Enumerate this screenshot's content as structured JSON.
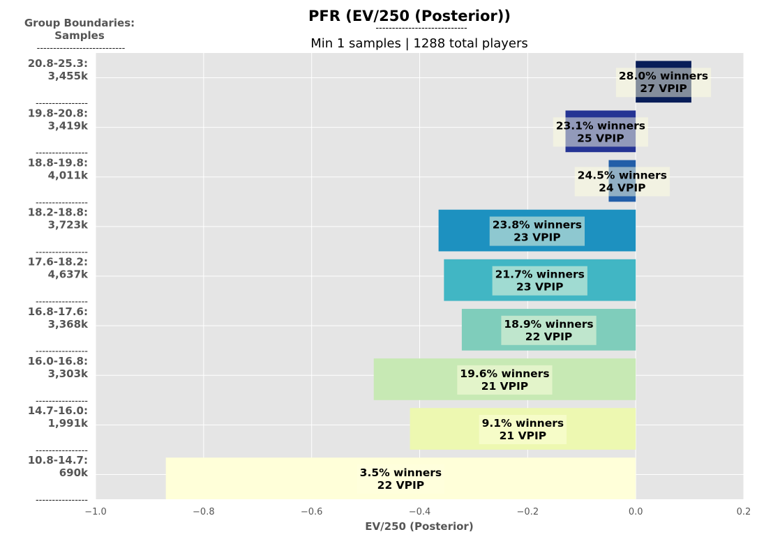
{
  "chart_data": {
    "type": "bar",
    "orientation": "horizontal",
    "title": "PFR (EV/250 (Posterior))",
    "subtitle": "Min 1 samples | 1288 total players",
    "title_rule": "----------------------------",
    "group_header": [
      "Group Boundaries:",
      "Samples"
    ],
    "group_header_rule": "---------------------------",
    "group_separator": "----------------",
    "xlabel": "EV/250 (Posterior)",
    "xlim": [
      -1.0,
      0.2
    ],
    "xticks": [
      "−1.0",
      "−0.8",
      "−0.6",
      "−0.4",
      "−0.2",
      "0.0",
      "0.2"
    ],
    "xtick_values": [
      -1.0,
      -0.8,
      -0.6,
      -0.4,
      -0.2,
      0.0,
      0.2
    ],
    "grid": true,
    "background": "#e5e5e5",
    "groups": [
      {
        "range": "20.8-25.3:",
        "samples": "3,455k",
        "value": 0.103,
        "color": "#081d58",
        "winners": "28.0% winners",
        "vpip": "27 VPIP"
      },
      {
        "range": "19.8-20.8:",
        "samples": "3,419k",
        "value": -0.13,
        "color": "#253494",
        "winners": "23.1% winners",
        "vpip": "25 VPIP"
      },
      {
        "range": "18.8-19.8:",
        "samples": "4,011k",
        "value": -0.05,
        "color": "#225ea8",
        "winners": "24.5% winners",
        "vpip": "24 VPIP"
      },
      {
        "range": "18.2-18.8:",
        "samples": "3,723k",
        "value": -0.365,
        "color": "#1d91c0",
        "winners": "23.8% winners",
        "vpip": "23 VPIP"
      },
      {
        "range": "17.6-18.2:",
        "samples": "4,637k",
        "value": -0.355,
        "color": "#41b6c4",
        "winners": "21.7% winners",
        "vpip": "23 VPIP"
      },
      {
        "range": "16.8-17.6:",
        "samples": "3,368k",
        "value": -0.322,
        "color": "#7fcdbb",
        "winners": "18.9% winners",
        "vpip": "22 VPIP"
      },
      {
        "range": "16.0-16.8:",
        "samples": "3,303k",
        "value": -0.485,
        "color": "#c7e9b4",
        "winners": "19.6% winners",
        "vpip": "21 VPIP"
      },
      {
        "range": "14.7-16.0:",
        "samples": "1,991k",
        "value": -0.418,
        "color": "#edf8b1",
        "winners": "9.1% winners",
        "vpip": "21 VPIP"
      },
      {
        "range": "10.8-14.7:",
        "samples": "690k",
        "value": -0.87,
        "color": "#ffffd9",
        "winners": "3.5% winners",
        "vpip": "22 VPIP"
      }
    ]
  }
}
